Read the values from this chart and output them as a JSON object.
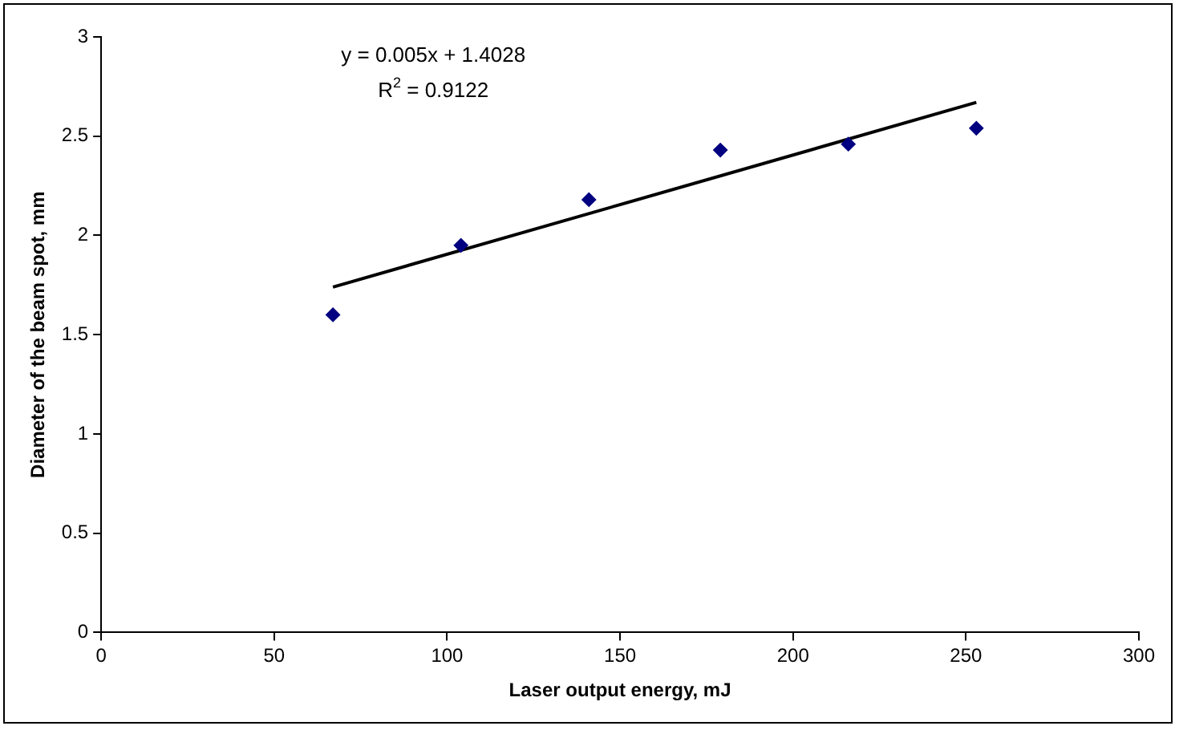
{
  "chart_data": {
    "type": "scatter",
    "xlabel": "Laser output energy, mJ",
    "ylabel": "Diameter of the beam spot, mm",
    "series": [
      {
        "color": "#000080",
        "marker": "diamond",
        "x": [
          67,
          104,
          141,
          179,
          216,
          253
        ],
        "values": [
          1.6,
          1.95,
          2.18,
          2.43,
          2.46,
          2.54
        ]
      },
      {
        "type": "line",
        "color": "#000000",
        "marker": "none",
        "x": [
          67,
          253
        ],
        "values": [
          1.74,
          2.67
        ]
      }
    ],
    "xlim": [
      0,
      300
    ],
    "xticks": [
      0,
      50,
      100,
      150,
      200,
      250,
      300
    ],
    "ylim": [
      0,
      3
    ],
    "yticks": [
      0,
      0.5,
      1,
      1.5,
      2,
      2.5,
      3
    ],
    "grid": false,
    "legend": false,
    "annotations": [
      "y = 0.005x + 1.4028",
      "R$^{2}$ = 0.9122"
    ]
  }
}
